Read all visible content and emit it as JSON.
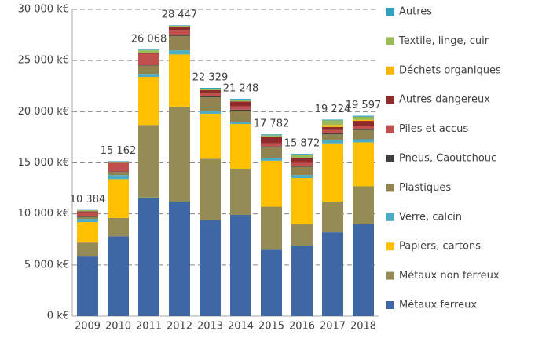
{
  "chart_data": {
    "type": "stacked_bar",
    "categories": [
      "2009",
      "2010",
      "2011",
      "2012",
      "2013",
      "2014",
      "2015",
      "2016",
      "2017",
      "2018"
    ],
    "series": [
      {
        "name": "Métaux ferreux",
        "color": "#3f67a3",
        "values": [
          5900,
          7800,
          11600,
          11200,
          9400,
          9900,
          6500,
          6900,
          8200,
          9000
        ]
      },
      {
        "name": "Métaux non ferreux",
        "color": "#958b55",
        "values": [
          1300,
          1800,
          7100,
          9300,
          6000,
          4500,
          4200,
          2100,
          3000,
          3700
        ]
      },
      {
        "name": "Papiers, cartons",
        "color": "#ffc000",
        "values": [
          2000,
          3800,
          4700,
          5100,
          4400,
          4400,
          4500,
          4500,
          5700,
          4300
        ]
      },
      {
        "name": "Verre, calcin",
        "color": "#4bacc6",
        "values": [
          300,
          400,
          300,
          400,
          300,
          200,
          300,
          300,
          300,
          300
        ]
      },
      {
        "name": "Plastiques",
        "color": "#8f8450",
        "values": [
          200,
          300,
          800,
          1400,
          1300,
          1100,
          1000,
          800,
          600,
          900
        ]
      },
      {
        "name": "Pneus, Caoutchouc",
        "color": "#404040",
        "values": [
          50,
          50,
          50,
          100,
          100,
          100,
          100,
          100,
          100,
          100
        ]
      },
      {
        "name": "Piles et accus",
        "color": "#c0504d",
        "values": [
          400,
          850,
          1100,
          500,
          300,
          300,
          300,
          300,
          300,
          300
        ]
      },
      {
        "name": "Autres dangereux",
        "color": "#8e2b2b",
        "values": [
          100,
          0,
          100,
          300,
          300,
          500,
          600,
          500,
          300,
          500
        ]
      },
      {
        "name": "Déchets organiques",
        "color": "#f8b500",
        "values": [
          0,
          0,
          0,
          0,
          0,
          0,
          0,
          0,
          200,
          100
        ]
      },
      {
        "name": "Textile, linge, cuir",
        "color": "#9bbb59",
        "values": [
          100,
          100,
          250,
          100,
          150,
          150,
          200,
          300,
          450,
          300
        ]
      },
      {
        "name": "Autres",
        "color": "#31a0c0",
        "values": [
          34,
          62,
          68,
          47,
          79,
          98,
          82,
          72,
          74,
          97
        ]
      }
    ],
    "totals": [
      10384,
      15162,
      26068,
      28447,
      22329,
      21248,
      17782,
      15872,
      19224,
      19597
    ],
    "total_labels": [
      "10 384",
      "15 162",
      "26 068",
      "28 447",
      "22 329",
      "21 248",
      "17 782",
      "15 872",
      "19 224",
      "19 597"
    ],
    "ylim": [
      0,
      30000
    ],
    "yticks": [
      {
        "value": 0,
        "label": "0 k€"
      },
      {
        "value": 5000,
        "label": "5 000 k€"
      },
      {
        "value": 10000,
        "label": "10 000 k€"
      },
      {
        "value": 15000,
        "label": "15 000 k€"
      },
      {
        "value": 20000,
        "label": "20 000 k€"
      },
      {
        "value": 25000,
        "label": "25 000 k€"
      },
      {
        "value": 30000,
        "label": "30 000 k€"
      }
    ],
    "grid": true,
    "legend": "right"
  }
}
